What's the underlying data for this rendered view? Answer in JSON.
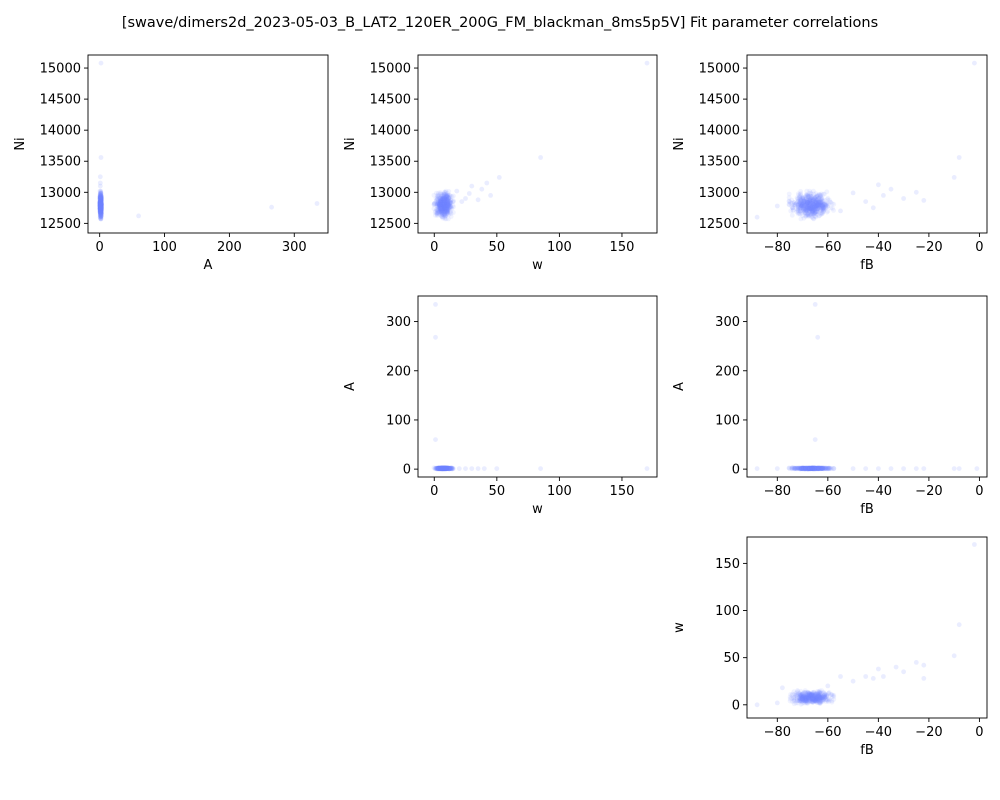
{
  "figure_title": "[swave/dimers2d_2023-05-03_B_LAT2_120ER_200G_FM_blackman_8ms5p5V] Fit parameter correlations",
  "marker_color": "#7a8cff",
  "chart_data": [
    {
      "id": "A-vs-Ni",
      "type": "scatter",
      "xlabel": "A",
      "ylabel": "Ni",
      "xlim": [
        -18,
        352
      ],
      "ylim": [
        12345,
        15210
      ],
      "xticks": [
        0,
        100,
        200,
        300
      ],
      "yticks": [
        12500,
        13000,
        13500,
        14000,
        14500,
        15000
      ],
      "cluster": {
        "x": [
          0,
          3
        ],
        "y": [
          12580,
          13010
        ],
        "count": 600
      },
      "outliers": [
        {
          "x": 2,
          "y": 15080
        },
        {
          "x": 2,
          "y": 13560
        },
        {
          "x": 1,
          "y": 13250
        },
        {
          "x": 1,
          "y": 13150
        },
        {
          "x": 1,
          "y": 13100
        },
        {
          "x": 60,
          "y": 12620
        },
        {
          "x": 265,
          "y": 12760
        },
        {
          "x": 335,
          "y": 12820
        }
      ]
    },
    {
      "id": "w-vs-Ni",
      "type": "scatter",
      "xlabel": "w",
      "ylabel": "Ni",
      "xlim": [
        -13,
        178
      ],
      "ylim": [
        12345,
        15210
      ],
      "xticks": [
        0,
        50,
        100,
        150
      ],
      "yticks": [
        12500,
        13000,
        13500,
        14000,
        14500,
        15000
      ],
      "cluster": {
        "x": [
          0,
          15
        ],
        "y": [
          12580,
          13010
        ],
        "count": 600
      },
      "outliers": [
        {
          "x": 170,
          "y": 15080
        },
        {
          "x": 85,
          "y": 13560
        },
        {
          "x": 52,
          "y": 13240
        },
        {
          "x": 42,
          "y": 13150
        },
        {
          "x": 38,
          "y": 13050
        },
        {
          "x": 30,
          "y": 13100
        },
        {
          "x": 28,
          "y": 12980
        },
        {
          "x": 25,
          "y": 12900
        },
        {
          "x": 35,
          "y": 12880
        },
        {
          "x": 22,
          "y": 12850
        },
        {
          "x": 18,
          "y": 13020
        },
        {
          "x": 45,
          "y": 12950
        }
      ]
    },
    {
      "id": "fB-vs-Ni",
      "type": "scatter",
      "xlabel": "fB",
      "ylabel": "Ni",
      "xlim": [
        -92,
        3
      ],
      "ylim": [
        12345,
        15210
      ],
      "xticks": [
        -80,
        -60,
        -40,
        -20,
        0
      ],
      "yticks": [
        12500,
        13000,
        13500,
        14000,
        14500,
        15000
      ],
      "cluster": {
        "x": [
          -75,
          -58
        ],
        "y": [
          12580,
          13010
        ],
        "count": 600
      },
      "outliers": [
        {
          "x": -2,
          "y": 15080
        },
        {
          "x": -8,
          "y": 13560
        },
        {
          "x": -10,
          "y": 13240
        },
        {
          "x": -88,
          "y": 12600
        },
        {
          "x": -50,
          "y": 12990
        },
        {
          "x": -45,
          "y": 12850
        },
        {
          "x": -40,
          "y": 13120
        },
        {
          "x": -35,
          "y": 13050
        },
        {
          "x": -30,
          "y": 12900
        },
        {
          "x": -25,
          "y": 13000
        },
        {
          "x": -22,
          "y": 12870
        },
        {
          "x": -38,
          "y": 12950
        },
        {
          "x": -42,
          "y": 12750
        },
        {
          "x": -80,
          "y": 12780
        },
        {
          "x": -55,
          "y": 12700
        }
      ]
    },
    {
      "id": "w-vs-A",
      "type": "scatter",
      "xlabel": "w",
      "ylabel": "A",
      "xlim": [
        -13,
        178
      ],
      "ylim": [
        -16,
        352
      ],
      "xticks": [
        0,
        50,
        100,
        150
      ],
      "yticks": [
        0,
        100,
        200,
        300
      ],
      "cluster": {
        "x": [
          0,
          15
        ],
        "y": [
          0,
          3
        ],
        "count": 400
      },
      "outliers": [
        {
          "x": 1,
          "y": 335
        },
        {
          "x": 1,
          "y": 268
        },
        {
          "x": 1,
          "y": 60
        },
        {
          "x": 20,
          "y": 1
        },
        {
          "x": 25,
          "y": 1
        },
        {
          "x": 30,
          "y": 1
        },
        {
          "x": 35,
          "y": 1
        },
        {
          "x": 40,
          "y": 1
        },
        {
          "x": 50,
          "y": 1
        },
        {
          "x": 85,
          "y": 1
        },
        {
          "x": 170,
          "y": 1
        }
      ]
    },
    {
      "id": "fB-vs-A",
      "type": "scatter",
      "xlabel": "fB",
      "ylabel": "A",
      "xlim": [
        -92,
        3
      ],
      "ylim": [
        -16,
        352
      ],
      "xticks": [
        -80,
        -60,
        -40,
        -20,
        0
      ],
      "yticks": [
        0,
        100,
        200,
        300
      ],
      "cluster": {
        "x": [
          -75,
          -58
        ],
        "y": [
          0,
          3
        ],
        "count": 400
      },
      "outliers": [
        {
          "x": -65,
          "y": 335
        },
        {
          "x": -64,
          "y": 268
        },
        {
          "x": -65,
          "y": 60
        },
        {
          "x": -88,
          "y": 1
        },
        {
          "x": -80,
          "y": 1
        },
        {
          "x": -50,
          "y": 1
        },
        {
          "x": -45,
          "y": 1
        },
        {
          "x": -40,
          "y": 1
        },
        {
          "x": -35,
          "y": 1
        },
        {
          "x": -30,
          "y": 1
        },
        {
          "x": -25,
          "y": 1
        },
        {
          "x": -22,
          "y": 1
        },
        {
          "x": -10,
          "y": 1
        },
        {
          "x": -8,
          "y": 1
        },
        {
          "x": -1,
          "y": 1
        }
      ]
    },
    {
      "id": "fB-vs-w",
      "type": "scatter",
      "xlabel": "fB",
      "ylabel": "w",
      "xlim": [
        -92,
        3
      ],
      "ylim": [
        -14,
        178
      ],
      "xticks": [
        -80,
        -60,
        -40,
        -20,
        0
      ],
      "yticks": [
        0,
        50,
        100,
        150
      ],
      "cluster": {
        "x": [
          -75,
          -58
        ],
        "y": [
          0,
          15
        ],
        "count": 500
      },
      "outliers": [
        {
          "x": -2,
          "y": 170
        },
        {
          "x": -8,
          "y": 85
        },
        {
          "x": -10,
          "y": 52
        },
        {
          "x": -22,
          "y": 42
        },
        {
          "x": -22,
          "y": 28
        },
        {
          "x": -25,
          "y": 45
        },
        {
          "x": -30,
          "y": 35
        },
        {
          "x": -33,
          "y": 40
        },
        {
          "x": -38,
          "y": 30
        },
        {
          "x": -40,
          "y": 38
        },
        {
          "x": -42,
          "y": 28
        },
        {
          "x": -45,
          "y": 30
        },
        {
          "x": -50,
          "y": 25
        },
        {
          "x": -55,
          "y": 30
        },
        {
          "x": -60,
          "y": 20
        },
        {
          "x": -80,
          "y": 2
        },
        {
          "x": -88,
          "y": 0
        },
        {
          "x": -78,
          "y": 18
        },
        {
          "x": -72,
          "y": 15
        }
      ]
    }
  ]
}
